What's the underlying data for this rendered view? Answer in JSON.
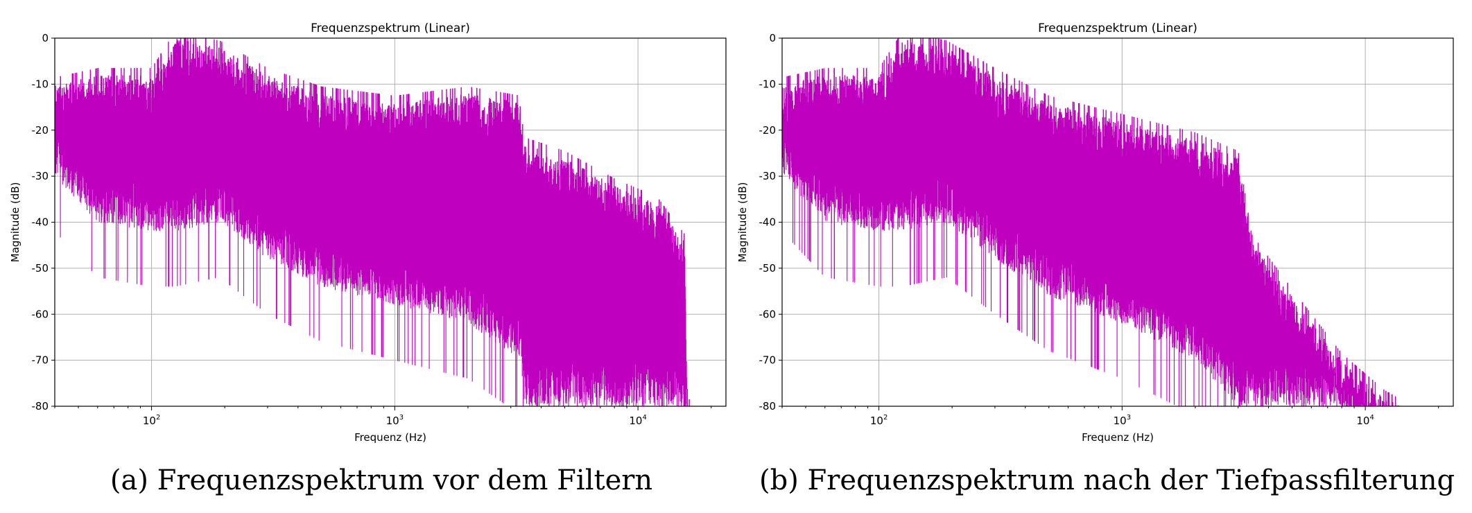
{
  "captions": [
    "(a) Frequenzspektrum vor dem Filtern",
    "(b) Frequenzspektrum nach der Tiefpassfilterung"
  ],
  "chart_data": [
    {
      "type": "line",
      "title": "Frequenzspektrum (Linear)",
      "xlabel": "Frequenz (Hz)",
      "ylabel": "Magnitude (dB)",
      "xscale": "log",
      "xlim": [
        40,
        23000
      ],
      "ylim": [
        -80,
        0
      ],
      "xticks": [
        {
          "value": 100,
          "label": "10",
          "exp": "2"
        },
        {
          "value": 1000,
          "label": "10",
          "exp": "3"
        },
        {
          "value": 10000,
          "label": "10",
          "exp": "4"
        }
      ],
      "yticks": [
        0,
        -10,
        -20,
        -30,
        -40,
        -50,
        -60,
        -70,
        -80
      ],
      "grid": true,
      "color": "#bf00bf",
      "series": [
        {
          "x": [
            40,
            60,
            100,
            125,
            190,
            300,
            500,
            1000,
            2000,
            3300,
            3400,
            5000,
            8000,
            12000,
            15500,
            16000,
            16500
          ],
          "upper": [
            -10,
            -8,
            -8,
            0,
            -2,
            -8,
            -12,
            -14,
            -12,
            -14,
            -23,
            -26,
            -32,
            -36,
            -44,
            -80,
            -80
          ],
          "lower": [
            -30,
            -40,
            -42,
            -42,
            -40,
            -48,
            -54,
            -58,
            -62,
            -70,
            -80,
            -80,
            -80,
            -80,
            -80,
            -80,
            -80
          ]
        }
      ]
    },
    {
      "type": "line",
      "title": "Frequenzspektrum (Linear)",
      "xlabel": "Frequenz (Hz)",
      "ylabel": "Magnitude (dB)",
      "xscale": "log",
      "xlim": [
        40,
        23000
      ],
      "ylim": [
        -80,
        0
      ],
      "xticks": [
        {
          "value": 100,
          "label": "10",
          "exp": "2"
        },
        {
          "value": 1000,
          "label": "10",
          "exp": "3"
        },
        {
          "value": 10000,
          "label": "10",
          "exp": "4"
        }
      ],
      "yticks": [
        0,
        -10,
        -20,
        -30,
        -40,
        -50,
        -60,
        -70,
        -80
      ],
      "grid": true,
      "color": "#bf00bf",
      "series": [
        {
          "x": [
            40,
            60,
            100,
            125,
            190,
            300,
            500,
            1000,
            2000,
            3000,
            3400,
            5000,
            8000,
            12000,
            14000
          ],
          "upper": [
            -10,
            -8,
            -8,
            0,
            -2,
            -8,
            -14,
            -18,
            -22,
            -26,
            -44,
            -56,
            -70,
            -78,
            -80
          ],
          "lower": [
            -30,
            -40,
            -42,
            -42,
            -40,
            -48,
            -56,
            -62,
            -70,
            -80,
            -80,
            -80,
            -80,
            -80,
            -80
          ]
        }
      ]
    }
  ]
}
